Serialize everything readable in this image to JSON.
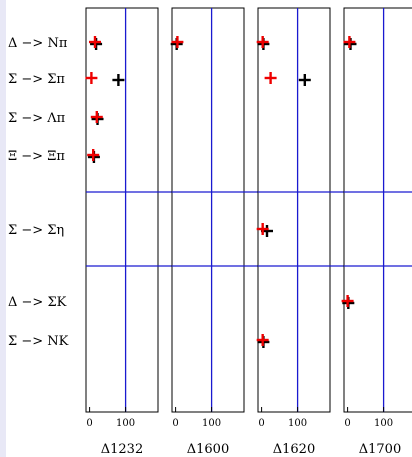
{
  "chart_data": {
    "type": "scatter",
    "panels": [
      {
        "label": "Δ1232",
        "xticks": [
          "0",
          "100"
        ]
      },
      {
        "label": "Δ1600",
        "xticks": [
          "0",
          "100"
        ]
      },
      {
        "label": "Δ1620",
        "xticks": [
          "0",
          "100"
        ]
      },
      {
        "label": "Δ1700",
        "xticks": [
          "0",
          "100"
        ]
      }
    ],
    "xlim": [
      -10,
      190
    ],
    "rows": [
      "Δ −> Nπ",
      "Σ −> Σπ",
      "Σ −> Λπ",
      "Ξ −> Ξπ",
      "Σ −> Ση",
      "Δ −> ΣK",
      "Σ −> NK"
    ],
    "series": [
      {
        "color": "#ee0000",
        "points": [
          {
            "panel": 0,
            "row": 0,
            "x": 15
          },
          {
            "panel": 0,
            "row": 1,
            "x": 5
          },
          {
            "panel": 0,
            "row": 2,
            "x": 20
          },
          {
            "panel": 0,
            "row": 3,
            "x": 10
          },
          {
            "panel": 1,
            "row": 0,
            "x": 5
          },
          {
            "panel": 2,
            "row": 0,
            "x": 3
          },
          {
            "panel": 2,
            "row": 1,
            "x": 25
          },
          {
            "panel": 2,
            "row": 4,
            "x": 3
          },
          {
            "panel": 2,
            "row": 6,
            "x": 3
          },
          {
            "panel": 3,
            "row": 0,
            "x": 5
          },
          {
            "panel": 3,
            "row": 5,
            "x": 0
          }
        ]
      },
      {
        "color": "#000000",
        "points": [
          {
            "panel": 0,
            "row": 0,
            "x": 18
          },
          {
            "panel": 0,
            "row": 1,
            "x": 80
          },
          {
            "panel": 0,
            "row": 2,
            "x": 22
          },
          {
            "panel": 0,
            "row": 3,
            "x": 12
          },
          {
            "panel": 1,
            "row": 0,
            "x": 3
          },
          {
            "panel": 2,
            "row": 0,
            "x": 5
          },
          {
            "panel": 2,
            "row": 1,
            "x": 120
          },
          {
            "panel": 2,
            "row": 4,
            "x": 15
          },
          {
            "panel": 2,
            "row": 6,
            "x": 5
          },
          {
            "panel": 3,
            "row": 0,
            "x": 8
          },
          {
            "panel": 3,
            "row": 5,
            "x": 2
          }
        ]
      }
    ],
    "hlines_after_rows": [
      3,
      4
    ],
    "vline_x": 100
  }
}
